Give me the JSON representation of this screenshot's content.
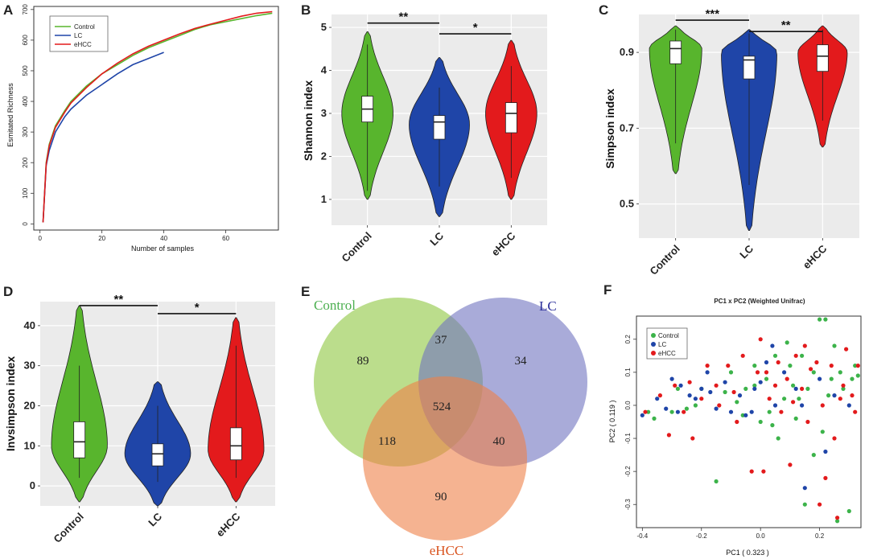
{
  "colors": {
    "control": "#58b52d",
    "lc": "#1f45a8",
    "ehcc": "#e31a1c",
    "panel_bg": "#ebebeb",
    "grid": "#ffffff"
  },
  "panel_labels": [
    "A",
    "B",
    "C",
    "D",
    "E",
    "F"
  ],
  "chart_data": [
    {
      "panel": "A",
      "type": "line",
      "xlabel": "Number of samples",
      "ylabel": "Esmitated Richness",
      "xlim": [
        -2,
        77
      ],
      "ylim": [
        -20,
        710
      ],
      "xticks": [
        "0",
        "20",
        "40",
        "60"
      ],
      "yticks": [
        "0",
        "100",
        "200",
        "300",
        "400",
        "500",
        "600",
        "700"
      ],
      "legend": [
        "Control",
        "LC",
        "eHCC"
      ],
      "series": [
        {
          "name": "Control",
          "color": "#58b52d",
          "x": [
            1,
            2,
            3,
            5,
            8,
            10,
            15,
            20,
            25,
            30,
            35,
            40,
            45,
            50,
            55,
            60,
            65,
            70,
            75
          ],
          "y": [
            5,
            200,
            260,
            320,
            370,
            400,
            450,
            490,
            520,
            550,
            575,
            595,
            615,
            635,
            650,
            660,
            670,
            680,
            688
          ]
        },
        {
          "name": "LC",
          "color": "#1f45a8",
          "x": [
            1,
            2,
            3,
            5,
            8,
            10,
            15,
            20,
            25,
            30,
            35,
            40
          ],
          "y": [
            5,
            190,
            240,
            300,
            350,
            375,
            420,
            455,
            490,
            520,
            540,
            560
          ]
        },
        {
          "name": "eHCC",
          "color": "#e31a1c",
          "x": [
            1,
            2,
            3,
            5,
            8,
            10,
            15,
            20,
            25,
            30,
            35,
            40,
            45,
            50,
            55,
            60,
            65,
            70,
            75
          ],
          "y": [
            5,
            195,
            255,
            315,
            365,
            395,
            445,
            490,
            525,
            555,
            580,
            600,
            620,
            638,
            652,
            665,
            678,
            688,
            693
          ]
        }
      ]
    },
    {
      "panel": "B",
      "type": "violin",
      "ylabel": "Shannon index",
      "categories": [
        "Control",
        "LC",
        "eHCC"
      ],
      "ylim": [
        0.4,
        5.3
      ],
      "yticks": [
        "1",
        "2",
        "3",
        "4",
        "5"
      ],
      "violins": [
        {
          "name": "Control",
          "min": 1.0,
          "max": 4.9,
          "q1": 2.8,
          "median": 3.1,
          "q3": 3.4,
          "wmin": 1.2,
          "wmax": 4.6,
          "peak": 3.0,
          "width": 0.85
        },
        {
          "name": "LC",
          "min": 0.6,
          "max": 4.3,
          "q1": 2.4,
          "median": 2.8,
          "q3": 2.95,
          "wmin": 1.3,
          "wmax": 3.6,
          "peak": 2.75,
          "width": 1.0
        },
        {
          "name": "eHCC",
          "min": 1.0,
          "max": 4.7,
          "q1": 2.55,
          "median": 3.0,
          "q3": 3.25,
          "wmin": 1.5,
          "wmax": 4.1,
          "peak": 3.0,
          "width": 0.85
        }
      ],
      "significance": [
        {
          "from": "Control",
          "to": "LC",
          "label": "**",
          "y": 5.1
        },
        {
          "from": "LC",
          "to": "eHCC",
          "label": "*",
          "y": 4.85
        }
      ]
    },
    {
      "panel": "C",
      "type": "violin",
      "ylabel": "Simpson index",
      "categories": [
        "Control",
        "LC",
        "eHCC"
      ],
      "ylim": [
        0.41,
        1.0
      ],
      "yticks": [
        "0.5",
        "0.7",
        "0.9"
      ],
      "violins": [
        {
          "name": "Control",
          "min": 0.58,
          "max": 0.97,
          "q1": 0.87,
          "median": 0.91,
          "q3": 0.93,
          "wmin": 0.66,
          "wmax": 0.96,
          "peak": 0.91,
          "width": 0.85
        },
        {
          "name": "LC",
          "min": 0.43,
          "max": 0.96,
          "q1": 0.83,
          "median": 0.88,
          "q3": 0.89,
          "wmin": 0.55,
          "wmax": 0.95,
          "peak": 0.9,
          "width": 0.9
        },
        {
          "name": "eHCC",
          "min": 0.65,
          "max": 0.97,
          "q1": 0.85,
          "median": 0.89,
          "q3": 0.92,
          "wmin": 0.72,
          "wmax": 0.96,
          "peak": 0.9,
          "width": 0.8
        }
      ],
      "significance": [
        {
          "from": "Control",
          "to": "LC",
          "label": "***",
          "y": 0.985
        },
        {
          "from": "LC",
          "to": "eHCC",
          "label": "**",
          "y": 0.955
        }
      ]
    },
    {
      "panel": "D",
      "type": "violin",
      "ylabel": "Invsimpson index",
      "categories": [
        "Control",
        "LC",
        "eHCC"
      ],
      "ylim": [
        -5,
        46
      ],
      "yticks": [
        "0",
        "10",
        "20",
        "30",
        "40"
      ],
      "violins": [
        {
          "name": "Control",
          "min": -4,
          "max": 45,
          "q1": 7,
          "median": 11,
          "q3": 16,
          "wmin": 2,
          "wmax": 30,
          "peak": 10,
          "width": 0.85
        },
        {
          "name": "LC",
          "min": -5,
          "max": 26,
          "q1": 5,
          "median": 8,
          "q3": 10.5,
          "wmin": 1,
          "wmax": 20,
          "peak": 8,
          "width": 1.0
        },
        {
          "name": "eHCC",
          "min": -4,
          "max": 42,
          "q1": 6.5,
          "median": 10,
          "q3": 14.5,
          "wmin": 2,
          "wmax": 35,
          "peak": 9,
          "width": 0.85
        }
      ],
      "significance": [
        {
          "from": "Control",
          "to": "LC",
          "label": "**",
          "y": 45
        },
        {
          "from": "LC",
          "to": "eHCC",
          "label": "*",
          "y": 43
        }
      ]
    },
    {
      "panel": "E",
      "type": "venn",
      "sets": [
        "Control",
        "LC",
        "eHCC"
      ],
      "regions": {
        "control_only": "89",
        "lc_only": "34",
        "ehcc_only": "90",
        "control_lc": "37",
        "control_ehcc": "118",
        "lc_ehcc": "40",
        "all_three": "524"
      }
    },
    {
      "panel": "F",
      "type": "scatter",
      "title": "PC1 x PC2 (Weighted Unifrac)",
      "xlabel": "PC1 ( 0.323 )",
      "ylabel": "PC2 ( 0.119 )",
      "xlim": [
        -0.42,
        0.34
      ],
      "ylim": [
        -0.37,
        0.27
      ],
      "xticks": [
        "-0.4",
        "-0.2",
        "0.0",
        "0.2"
      ],
      "yticks": [
        "-0.3",
        "-0.2",
        "-0.1",
        "0.0",
        "0.1",
        "0.2"
      ],
      "legend": [
        "Control",
        "LC",
        "eHCC"
      ],
      "series": [
        {
          "name": "Control",
          "color": "#3cb34a",
          "points": [
            [
              -0.38,
              -0.02
            ],
            [
              -0.36,
              -0.04
            ],
            [
              -0.3,
              -0.02
            ],
            [
              -0.28,
              0.05
            ],
            [
              -0.25,
              -0.01
            ],
            [
              -0.2,
              0.05
            ],
            [
              -0.15,
              -0.23
            ],
            [
              -0.12,
              0.04
            ],
            [
              -0.08,
              0.01
            ],
            [
              -0.05,
              0.05
            ],
            [
              -0.02,
              0.06
            ],
            [
              0.0,
              -0.05
            ],
            [
              0.02,
              0.08
            ],
            [
              0.04,
              -0.06
            ],
            [
              0.06,
              -0.1
            ],
            [
              0.08,
              0.02
            ],
            [
              0.1,
              0.12
            ],
            [
              0.12,
              -0.04
            ],
            [
              0.14,
              0.15
            ],
            [
              0.15,
              -0.3
            ],
            [
              0.16,
              0.05
            ],
            [
              0.18,
              0.1
            ],
            [
              0.2,
              0.26
            ],
            [
              0.21,
              -0.08
            ],
            [
              0.22,
              0.26
            ],
            [
              0.24,
              0.08
            ],
            [
              0.25,
              0.18
            ],
            [
              0.26,
              -0.35
            ],
            [
              0.27,
              0.1
            ],
            [
              0.28,
              0.05
            ],
            [
              0.3,
              -0.32
            ],
            [
              0.31,
              0.08
            ],
            [
              0.32,
              0.12
            ],
            [
              0.33,
              0.09
            ],
            [
              0.13,
              0.02
            ],
            [
              -0.02,
              0.12
            ],
            [
              0.05,
              0.15
            ],
            [
              -0.1,
              0.1
            ],
            [
              0.18,
              -0.15
            ],
            [
              0.03,
              -0.02
            ],
            [
              -0.06,
              -0.03
            ],
            [
              0.09,
              0.19
            ],
            [
              0.23,
              0.03
            ],
            [
              -0.22,
              0.0
            ],
            [
              0.11,
              0.06
            ]
          ]
        },
        {
          "name": "LC",
          "color": "#1f45a8",
          "points": [
            [
              -0.4,
              -0.03
            ],
            [
              -0.35,
              0.02
            ],
            [
              -0.32,
              -0.01
            ],
            [
              -0.3,
              0.08
            ],
            [
              -0.27,
              0.06
            ],
            [
              -0.24,
              0.03
            ],
            [
              -0.22,
              0.02
            ],
            [
              -0.2,
              0.05
            ],
            [
              -0.18,
              0.1
            ],
            [
              -0.15,
              -0.01
            ],
            [
              -0.12,
              0.07
            ],
            [
              -0.1,
              -0.02
            ],
            [
              -0.07,
              0.03
            ],
            [
              -0.05,
              -0.03
            ],
            [
              -0.02,
              0.05
            ],
            [
              0.0,
              0.07
            ],
            [
              0.02,
              0.13
            ],
            [
              0.05,
              0.0
            ],
            [
              0.08,
              0.1
            ],
            [
              0.12,
              0.05
            ],
            [
              0.15,
              -0.25
            ],
            [
              0.2,
              0.08
            ],
            [
              0.25,
              0.03
            ],
            [
              0.3,
              0.0
            ],
            [
              -0.17,
              0.04
            ],
            [
              0.04,
              0.18
            ],
            [
              -0.03,
              -0.02
            ],
            [
              0.14,
              0.0
            ],
            [
              0.22,
              -0.14
            ],
            [
              -0.28,
              -0.02
            ]
          ]
        },
        {
          "name": "eHCC",
          "color": "#e31a1c",
          "points": [
            [
              -0.39,
              -0.02
            ],
            [
              -0.34,
              0.03
            ],
            [
              -0.31,
              -0.09
            ],
            [
              -0.29,
              0.06
            ],
            [
              -0.26,
              -0.02
            ],
            [
              -0.23,
              -0.1
            ],
            [
              -0.2,
              0.02
            ],
            [
              -0.18,
              0.12
            ],
            [
              -0.14,
              0.0
            ],
            [
              -0.11,
              0.12
            ],
            [
              -0.09,
              0.04
            ],
            [
              -0.06,
              0.15
            ],
            [
              -0.03,
              -0.2
            ],
            [
              -0.01,
              0.1
            ],
            [
              0.01,
              -0.2
            ],
            [
              0.03,
              0.02
            ],
            [
              0.06,
              0.13
            ],
            [
              0.07,
              -0.02
            ],
            [
              0.09,
              0.08
            ],
            [
              0.1,
              -0.18
            ],
            [
              0.12,
              0.15
            ],
            [
              0.14,
              0.05
            ],
            [
              0.16,
              -0.05
            ],
            [
              0.17,
              0.11
            ],
            [
              0.19,
              0.13
            ],
            [
              0.21,
              0.0
            ],
            [
              0.22,
              -0.22
            ],
            [
              0.24,
              0.12
            ],
            [
              0.26,
              -0.34
            ],
            [
              0.27,
              0.02
            ],
            [
              0.28,
              0.06
            ],
            [
              0.29,
              0.17
            ],
            [
              0.31,
              0.03
            ],
            [
              0.32,
              -0.02
            ],
            [
              0.33,
              0.12
            ],
            [
              0.0,
              0.2
            ],
            [
              -0.15,
              0.06
            ],
            [
              0.05,
              0.06
            ],
            [
              0.11,
              0.01
            ],
            [
              0.2,
              -0.3
            ],
            [
              -0.08,
              -0.05
            ],
            [
              0.15,
              0.18
            ],
            [
              0.25,
              -0.1
            ],
            [
              -0.24,
              0.07
            ],
            [
              0.02,
              0.1
            ]
          ]
        }
      ]
    }
  ]
}
